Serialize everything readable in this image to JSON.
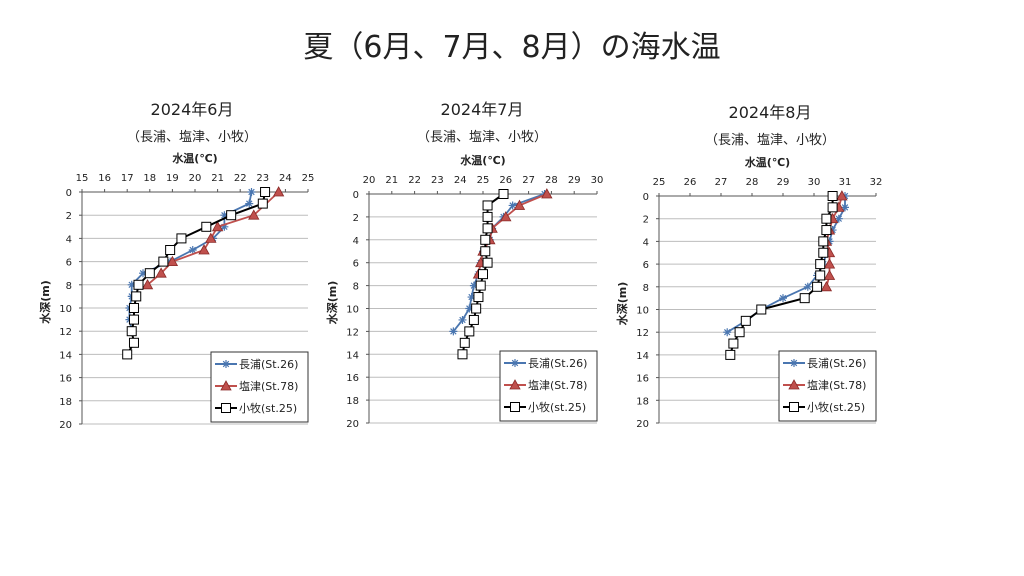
{
  "title": "夏（6月、7月、8月）の海水温",
  "colors": {
    "nagaura": "#4a76b0",
    "shiozu": "#c0504d",
    "komaki": "#000000"
  },
  "chart_data": [
    {
      "type": "line",
      "title": "2024年6月",
      "subtitle": "（長浦、塩津、小牧）",
      "xlabel": "水温(℃)",
      "ylabel": "水深(m)",
      "xlim": [
        15,
        25
      ],
      "xticks": [
        15,
        16,
        17,
        18,
        19,
        20,
        21,
        22,
        23,
        24,
        25
      ],
      "ylim": [
        0,
        20
      ],
      "yticks": [
        0,
        2,
        4,
        6,
        8,
        10,
        12,
        14,
        16,
        18,
        20
      ],
      "legend": "bottom-right",
      "grid": "horizontal",
      "series": [
        {
          "name": "長浦(St.26)",
          "marker": "star",
          "depth": [
            0,
            1,
            2,
            3,
            4,
            5,
            6,
            7,
            8,
            9,
            10,
            11,
            12
          ],
          "temp": [
            22.5,
            22.4,
            21.3,
            21.3,
            20.8,
            19.9,
            18.9,
            17.7,
            17.2,
            17.2,
            17.1,
            17.1,
            17.2
          ]
        },
        {
          "name": "塩津(St.78)",
          "marker": "triangle",
          "depth": [
            0,
            2,
            3,
            4,
            5,
            6,
            7,
            8
          ],
          "temp": [
            23.7,
            22.6,
            21.0,
            20.7,
            20.4,
            19.0,
            18.5,
            17.9
          ]
        },
        {
          "name": "小牧(st.25)",
          "marker": "square",
          "depth": [
            0,
            1,
            2,
            3,
            4,
            5,
            6,
            7,
            8,
            9,
            10,
            11,
            12,
            13,
            14
          ],
          "temp": [
            23.1,
            23.0,
            21.6,
            20.5,
            19.4,
            18.9,
            18.6,
            18.0,
            17.5,
            17.4,
            17.3,
            17.3,
            17.2,
            17.3,
            17.0
          ]
        }
      ]
    },
    {
      "type": "line",
      "title": "2024年7月",
      "subtitle": "（長浦、塩津、小牧）",
      "xlabel": "水温(℃)",
      "ylabel": "水深(m)",
      "xlim": [
        20,
        30
      ],
      "xticks": [
        20,
        21,
        22,
        23,
        24,
        25,
        26,
        27,
        28,
        29,
        30
      ],
      "ylim": [
        0,
        20
      ],
      "yticks": [
        0,
        2,
        4,
        6,
        8,
        10,
        12,
        14,
        16,
        18,
        20
      ],
      "legend": "bottom-right",
      "grid": "horizontal",
      "series": [
        {
          "name": "長浦(St.26)",
          "marker": "star",
          "depth": [
            0,
            1,
            2,
            3,
            4,
            5,
            6,
            7,
            8,
            9,
            10,
            11,
            12
          ],
          "temp": [
            27.7,
            26.3,
            25.9,
            25.4,
            25.3,
            25.0,
            24.9,
            24.8,
            24.6,
            24.5,
            24.4,
            24.1,
            23.7
          ]
        },
        {
          "name": "塩津(St.78)",
          "marker": "triangle",
          "depth": [
            0,
            1,
            2,
            3,
            4,
            5,
            6,
            7
          ],
          "temp": [
            27.8,
            26.6,
            26.0,
            25.4,
            25.3,
            25.0,
            24.9,
            24.8
          ]
        },
        {
          "name": "小牧(st.25)",
          "marker": "square",
          "depth": [
            0,
            1,
            2,
            3,
            4,
            5,
            6,
            7,
            8,
            9,
            10,
            11,
            12,
            13,
            14
          ],
          "temp": [
            25.9,
            25.2,
            25.2,
            25.2,
            25.1,
            25.1,
            25.2,
            25.0,
            24.9,
            24.8,
            24.7,
            24.6,
            24.4,
            24.2,
            24.1
          ]
        }
      ]
    },
    {
      "type": "line",
      "title": "2024年8月",
      "subtitle": "（長浦、塩津、小牧）",
      "xlabel": "水温(℃)",
      "ylabel": "水深(m)",
      "xlim": [
        25,
        32
      ],
      "xticks": [
        25,
        26,
        27,
        28,
        29,
        30,
        31,
        32
      ],
      "ylim": [
        0,
        20
      ],
      "yticks": [
        0,
        2,
        4,
        6,
        8,
        10,
        12,
        14,
        16,
        18,
        20
      ],
      "legend": "bottom-right",
      "grid": "horizontal",
      "series": [
        {
          "name": "長浦(St.26)",
          "marker": "star",
          "depth": [
            0,
            1,
            2,
            3,
            4,
            5,
            6,
            7,
            8,
            9,
            10,
            11,
            12
          ],
          "temp": [
            31.0,
            31.0,
            30.8,
            30.6,
            30.5,
            30.4,
            30.3,
            30.1,
            29.8,
            29.0,
            28.3,
            27.8,
            27.2
          ]
        },
        {
          "name": "塩津(St.78)",
          "marker": "triangle",
          "depth": [
            0,
            1,
            2,
            3,
            4,
            5,
            6,
            7,
            8
          ],
          "temp": [
            30.9,
            30.8,
            30.6,
            30.5,
            30.4,
            30.5,
            30.5,
            30.5,
            30.4
          ]
        },
        {
          "name": "小牧(st.25)",
          "marker": "square",
          "depth": [
            0,
            1,
            2,
            3,
            4,
            5,
            6,
            7,
            8,
            9,
            10,
            11,
            12,
            13,
            14
          ],
          "temp": [
            30.6,
            30.6,
            30.4,
            30.4,
            30.3,
            30.3,
            30.2,
            30.2,
            30.1,
            29.7,
            28.3,
            27.8,
            27.6,
            27.4,
            27.3
          ]
        }
      ]
    }
  ]
}
